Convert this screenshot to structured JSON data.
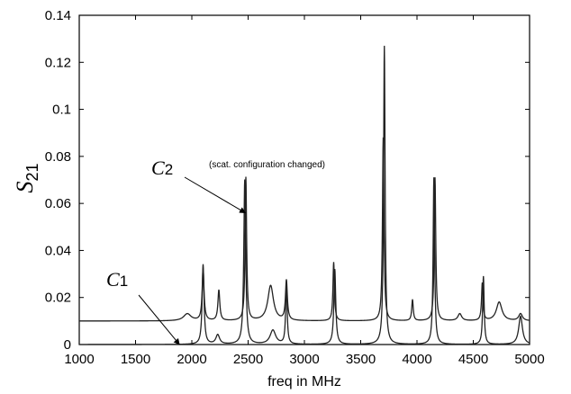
{
  "chart_data": {
    "type": "line",
    "xlabel": "freq in MHz",
    "ylabel": {
      "main": "S",
      "sub": "21"
    },
    "xlim": [
      1000,
      5000
    ],
    "ylim": [
      0,
      0.14
    ],
    "x_ticks": [
      1000,
      1500,
      2000,
      2500,
      3000,
      3500,
      4000,
      4500,
      5000
    ],
    "x_tick_labels": [
      "1000",
      "1500",
      "2000",
      "2500",
      "3000",
      "3500",
      "4000",
      "4500",
      "5000"
    ],
    "y_ticks": [
      0,
      0.02,
      0.04,
      0.06,
      0.08,
      0.1,
      0.12,
      0.14
    ],
    "y_tick_labels": [
      "0",
      "0.02",
      "0.04",
      "0.06",
      "0.08",
      "0.1",
      "0.12",
      "0.14"
    ],
    "grid": false,
    "series": [
      {
        "name": "C2",
        "color": "#222222",
        "baseline": 0.01,
        "peaks": [
          {
            "f": 1960,
            "h": 0.003,
            "w": 40
          },
          {
            "f": 2100,
            "h": 0.022,
            "w": 10
          },
          {
            "f": 2240,
            "h": 0.013,
            "w": 10
          },
          {
            "f": 2480,
            "h": 0.061,
            "w": 8
          },
          {
            "f": 2700,
            "h": 0.015,
            "w": 30
          },
          {
            "f": 2840,
            "h": 0.017,
            "w": 10
          },
          {
            "f": 3260,
            "h": 0.025,
            "w": 8
          },
          {
            "f": 3700,
            "h": 0.078,
            "w": 8
          },
          {
            "f": 3960,
            "h": 0.009,
            "w": 8
          },
          {
            "f": 4160,
            "h": 0.061,
            "w": 8
          },
          {
            "f": 4380,
            "h": 0.003,
            "w": 20
          },
          {
            "f": 4580,
            "h": 0.016,
            "w": 8
          },
          {
            "f": 4730,
            "h": 0.008,
            "w": 30
          },
          {
            "f": 4920,
            "h": 0.003,
            "w": 20
          }
        ]
      },
      {
        "name": "C1",
        "color": "#222222",
        "baseline": 0.0,
        "peaks": [
          {
            "f": 2100,
            "h": 0.034,
            "w": 10
          },
          {
            "f": 2230,
            "h": 0.004,
            "w": 20
          },
          {
            "f": 2470,
            "h": 0.07,
            "w": 10
          },
          {
            "f": 2720,
            "h": 0.006,
            "w": 30
          },
          {
            "f": 2840,
            "h": 0.026,
            "w": 8
          },
          {
            "f": 3270,
            "h": 0.032,
            "w": 10
          },
          {
            "f": 3710,
            "h": 0.127,
            "w": 8
          },
          {
            "f": 4150,
            "h": 0.071,
            "w": 8
          },
          {
            "f": 4590,
            "h": 0.029,
            "w": 8
          },
          {
            "f": 4920,
            "h": 0.012,
            "w": 20
          }
        ]
      }
    ],
    "annotations": [
      {
        "main": "C",
        "num": "2",
        "note": "(scat. configuration changed)",
        "target_x": 2475,
        "target_y": 0.056
      },
      {
        "main": "C",
        "num": "1",
        "target_x": 1890,
        "target_y": 0.0
      }
    ]
  }
}
